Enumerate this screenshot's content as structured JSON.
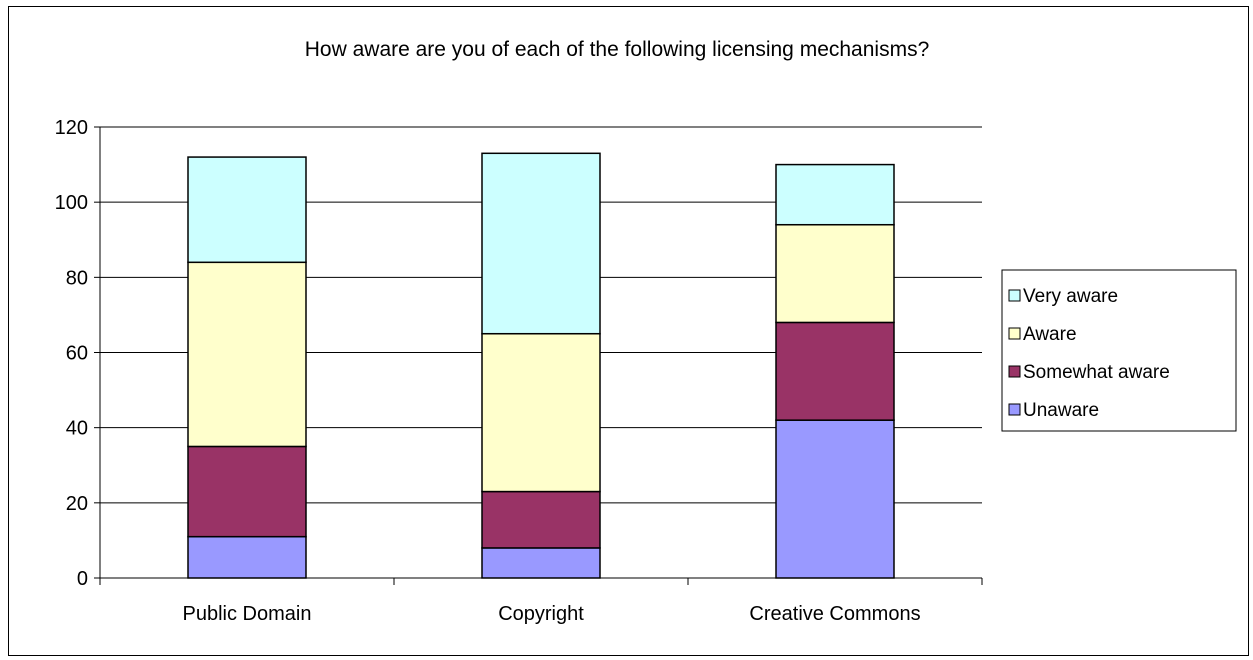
{
  "chart_data": {
    "type": "bar",
    "stacked": true,
    "title": "How aware are you of each of the following licensing mechanisms?",
    "xlabel": "",
    "ylabel": "",
    "categories": [
      "Public Domain",
      "Copyright",
      "Creative Commons"
    ],
    "ylim": [
      0,
      120
    ],
    "yticks": [
      0,
      20,
      40,
      60,
      80,
      100,
      120
    ],
    "grid": true,
    "legend": "right",
    "series": [
      {
        "name": "Unaware",
        "color": "#9999ff",
        "values": [
          11,
          8,
          42
        ]
      },
      {
        "name": "Somewhat aware",
        "color": "#993366",
        "values": [
          24,
          15,
          26
        ]
      },
      {
        "name": "Aware",
        "color": "#ffffcc",
        "values": [
          49,
          42,
          26
        ]
      },
      {
        "name": "Very aware",
        "color": "#ccffff",
        "values": [
          28,
          48,
          16
        ]
      }
    ]
  }
}
